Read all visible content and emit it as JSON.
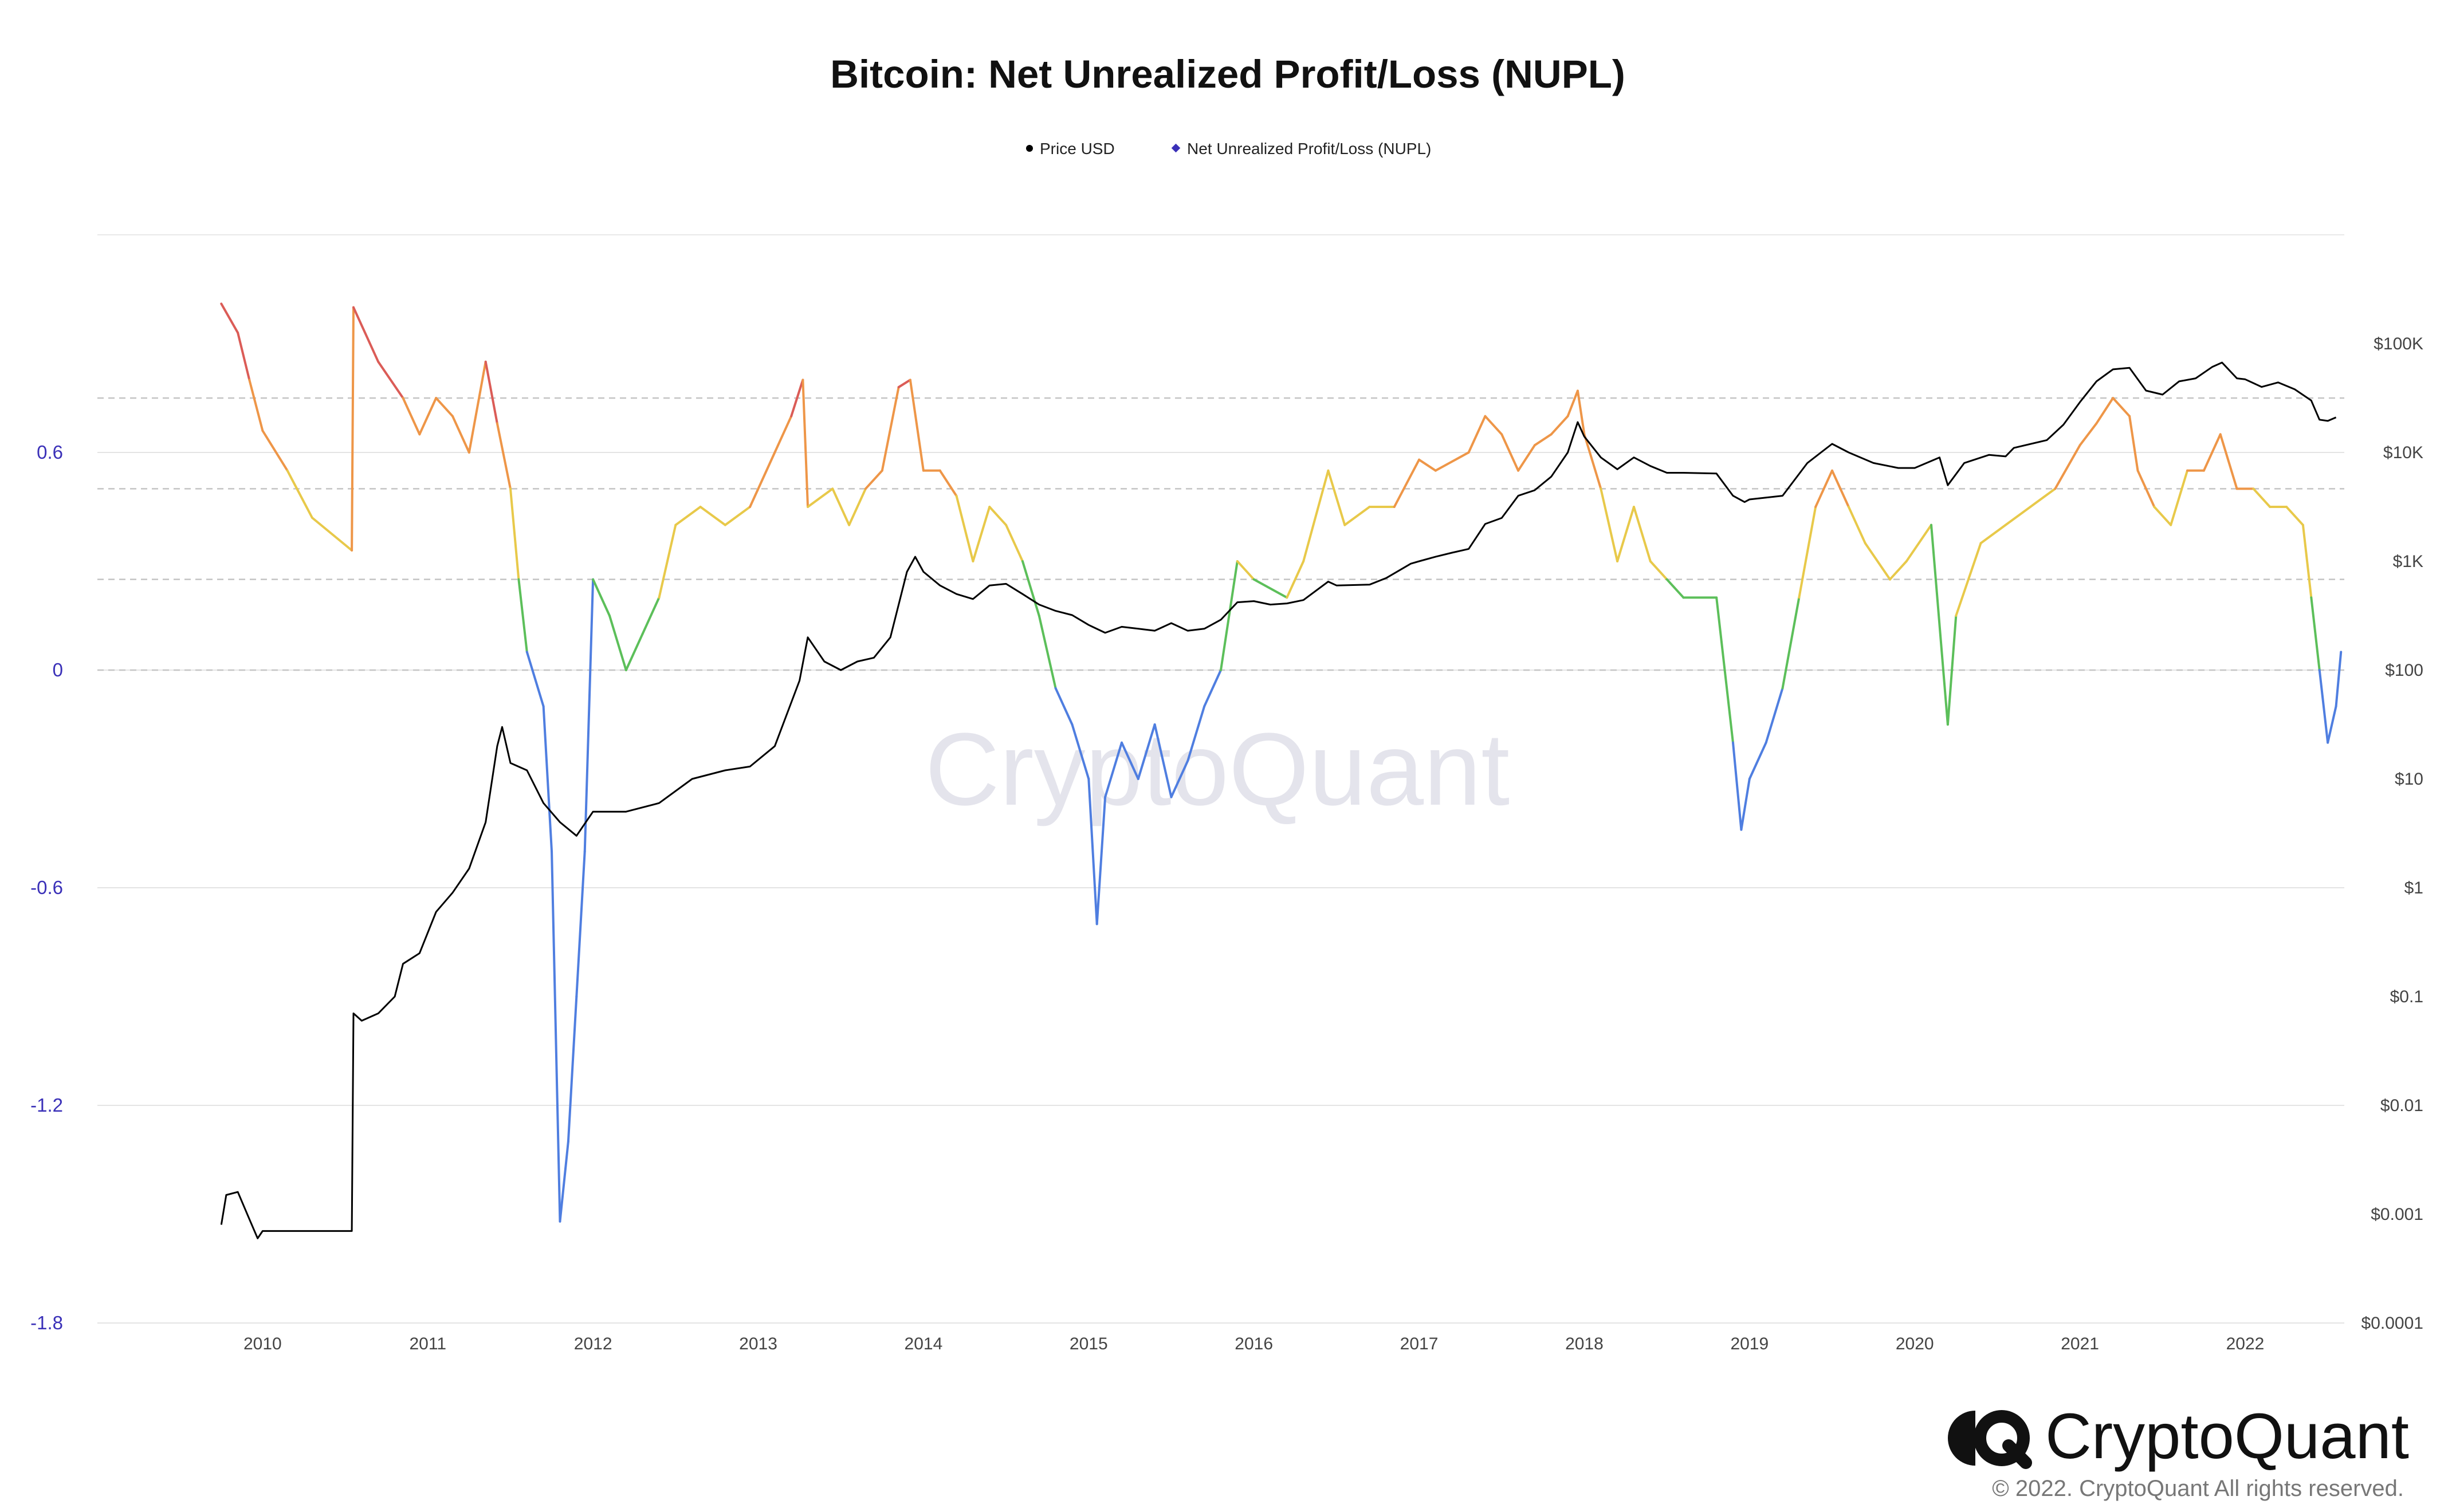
{
  "chart_data": {
    "type": "line",
    "title": "Bitcoin: Net Unrealized Profit/Loss (NUPL)",
    "legend": [
      {
        "name": "Price USD",
        "marker": "circle",
        "color": "#000000"
      },
      {
        "name": "Net Unrealized Profit/Loss (NUPL)",
        "marker": "diamond",
        "color": "#3a30b8"
      }
    ],
    "legend_position": "top-center",
    "grid": true,
    "watermark": "CryptoQuant",
    "x_ticks": [
      "2010",
      "2011",
      "2012",
      "2013",
      "2014",
      "2015",
      "2016",
      "2017",
      "2018",
      "2019",
      "2020",
      "2021",
      "2022"
    ],
    "xlim": [
      2009.0,
      2022.6
    ],
    "y_left": {
      "ticks": [
        "0.6",
        "0",
        "-0.6",
        "-1.2",
        "-1.8"
      ],
      "tick_values": [
        0.6,
        0,
        -0.6,
        -1.2,
        -1.8
      ],
      "ylim": [
        -1.8,
        1.2
      ],
      "reference_lines": [
        0.75,
        0.5,
        0.25,
        0
      ]
    },
    "y_right": {
      "ticks": [
        "$100K",
        "$10K",
        "$1K",
        "$100",
        "$10",
        "$1",
        "$0.1",
        "$0.01",
        "$0.001",
        "$0.0001"
      ],
      "scale": "log",
      "ylim": [
        0.0001,
        1000000
      ]
    },
    "nupl_zone_colors": {
      "capitulation": "#4f7ee0",
      "hope_fear": "#5cbf5a",
      "optimism_anxiety": "#e8c94a",
      "belief_denial": "#ee9648",
      "euphoria_greed": "#db5c57"
    },
    "series": [
      {
        "name": "Price USD",
        "color": "#000000",
        "points": [
          [
            2009.75,
            0.0008
          ],
          [
            2009.78,
            0.0015
          ],
          [
            2009.85,
            0.0016
          ],
          [
            2009.92,
            0.0009
          ],
          [
            2009.97,
            0.0006
          ],
          [
            2010.0,
            0.0007
          ],
          [
            2010.3,
            0.0007
          ],
          [
            2010.54,
            0.0007
          ],
          [
            2010.55,
            0.07
          ],
          [
            2010.6,
            0.06
          ],
          [
            2010.7,
            0.07
          ],
          [
            2010.8,
            0.1
          ],
          [
            2010.85,
            0.2
          ],
          [
            2010.95,
            0.25
          ],
          [
            2011.05,
            0.6
          ],
          [
            2011.15,
            0.9
          ],
          [
            2011.25,
            1.5
          ],
          [
            2011.35,
            4
          ],
          [
            2011.42,
            20
          ],
          [
            2011.45,
            30
          ],
          [
            2011.5,
            14
          ],
          [
            2011.6,
            12
          ],
          [
            2011.7,
            6
          ],
          [
            2011.8,
            4
          ],
          [
            2011.9,
            3
          ],
          [
            2012.0,
            5
          ],
          [
            2012.2,
            5
          ],
          [
            2012.4,
            6
          ],
          [
            2012.6,
            10
          ],
          [
            2012.8,
            12
          ],
          [
            2012.95,
            13
          ],
          [
            2013.1,
            20
          ],
          [
            2013.25,
            80
          ],
          [
            2013.3,
            200
          ],
          [
            2013.4,
            120
          ],
          [
            2013.5,
            100
          ],
          [
            2013.6,
            120
          ],
          [
            2013.7,
            130
          ],
          [
            2013.8,
            200
          ],
          [
            2013.9,
            800
          ],
          [
            2013.95,
            1100
          ],
          [
            2014.0,
            800
          ],
          [
            2014.1,
            600
          ],
          [
            2014.2,
            500
          ],
          [
            2014.3,
            450
          ],
          [
            2014.4,
            600
          ],
          [
            2014.5,
            620
          ],
          [
            2014.6,
            500
          ],
          [
            2014.7,
            400
          ],
          [
            2014.8,
            350
          ],
          [
            2014.9,
            320
          ],
          [
            2015.0,
            260
          ],
          [
            2015.1,
            220
          ],
          [
            2015.2,
            250
          ],
          [
            2015.3,
            240
          ],
          [
            2015.4,
            230
          ],
          [
            2015.5,
            270
          ],
          [
            2015.6,
            230
          ],
          [
            2015.7,
            240
          ],
          [
            2015.8,
            290
          ],
          [
            2015.9,
            420
          ],
          [
            2016.0,
            430
          ],
          [
            2016.1,
            400
          ],
          [
            2016.2,
            410
          ],
          [
            2016.3,
            440
          ],
          [
            2016.45,
            650
          ],
          [
            2016.5,
            600
          ],
          [
            2016.7,
            610
          ],
          [
            2016.8,
            700
          ],
          [
            2016.95,
            950
          ],
          [
            2017.0,
            1000
          ],
          [
            2017.1,
            1100
          ],
          [
            2017.2,
            1200
          ],
          [
            2017.3,
            1300
          ],
          [
            2017.4,
            2200
          ],
          [
            2017.5,
            2500
          ],
          [
            2017.6,
            4000
          ],
          [
            2017.7,
            4500
          ],
          [
            2017.8,
            6000
          ],
          [
            2017.9,
            10000
          ],
          [
            2017.96,
            19000
          ],
          [
            2018.0,
            14000
          ],
          [
            2018.1,
            9000
          ],
          [
            2018.2,
            7000
          ],
          [
            2018.3,
            9000
          ],
          [
            2018.4,
            7500
          ],
          [
            2018.5,
            6500
          ],
          [
            2018.6,
            6500
          ],
          [
            2018.8,
            6400
          ],
          [
            2018.9,
            4000
          ],
          [
            2018.97,
            3500
          ],
          [
            2019.0,
            3700
          ],
          [
            2019.2,
            4000
          ],
          [
            2019.35,
            8000
          ],
          [
            2019.5,
            12000
          ],
          [
            2019.6,
            10000
          ],
          [
            2019.75,
            8000
          ],
          [
            2019.9,
            7200
          ],
          [
            2020.0,
            7200
          ],
          [
            2020.15,
            9000
          ],
          [
            2020.2,
            5000
          ],
          [
            2020.3,
            8000
          ],
          [
            2020.45,
            9500
          ],
          [
            2020.55,
            9200
          ],
          [
            2020.6,
            11000
          ],
          [
            2020.8,
            13000
          ],
          [
            2020.9,
            18000
          ],
          [
            2021.0,
            29000
          ],
          [
            2021.1,
            45000
          ],
          [
            2021.2,
            58000
          ],
          [
            2021.3,
            60000
          ],
          [
            2021.4,
            37000
          ],
          [
            2021.5,
            34000
          ],
          [
            2021.6,
            45000
          ],
          [
            2021.7,
            48000
          ],
          [
            2021.8,
            61000
          ],
          [
            2021.86,
            67000
          ],
          [
            2021.95,
            48000
          ],
          [
            2022.0,
            47000
          ],
          [
            2022.1,
            40000
          ],
          [
            2022.2,
            44000
          ],
          [
            2022.3,
            38000
          ],
          [
            2022.4,
            30000
          ],
          [
            2022.45,
            20000
          ],
          [
            2022.5,
            19500
          ],
          [
            2022.55,
            21000
          ]
        ]
      },
      {
        "name": "Net Unrealized Profit/Loss (NUPL)",
        "color": "#3a30b8",
        "points": [
          [
            2009.75,
            1.01
          ],
          [
            2009.85,
            0.93
          ],
          [
            2009.92,
            0.8
          ],
          [
            2010.0,
            0.66
          ],
          [
            2010.15,
            0.55
          ],
          [
            2010.3,
            0.42
          ],
          [
            2010.54,
            0.33
          ],
          [
            2010.55,
            1.0
          ],
          [
            2010.7,
            0.85
          ],
          [
            2010.85,
            0.75
          ],
          [
            2010.95,
            0.65
          ],
          [
            2011.05,
            0.75
          ],
          [
            2011.15,
            0.7
          ],
          [
            2011.25,
            0.6
          ],
          [
            2011.35,
            0.85
          ],
          [
            2011.42,
            0.68
          ],
          [
            2011.5,
            0.5
          ],
          [
            2011.55,
            0.25
          ],
          [
            2011.6,
            0.05
          ],
          [
            2011.7,
            -0.1
          ],
          [
            2011.75,
            -0.5
          ],
          [
            2011.8,
            -1.52
          ],
          [
            2011.85,
            -1.3
          ],
          [
            2011.9,
            -0.9
          ],
          [
            2011.95,
            -0.5
          ],
          [
            2012.0,
            0.25
          ],
          [
            2012.1,
            0.15
          ],
          [
            2012.2,
            0.0
          ],
          [
            2012.3,
            0.1
          ],
          [
            2012.4,
            0.2
          ],
          [
            2012.5,
            0.4
          ],
          [
            2012.65,
            0.45
          ],
          [
            2012.8,
            0.4
          ],
          [
            2012.95,
            0.45
          ],
          [
            2013.1,
            0.6
          ],
          [
            2013.2,
            0.7
          ],
          [
            2013.27,
            0.8
          ],
          [
            2013.3,
            0.45
          ],
          [
            2013.45,
            0.5
          ],
          [
            2013.55,
            0.4
          ],
          [
            2013.65,
            0.5
          ],
          [
            2013.75,
            0.55
          ],
          [
            2013.85,
            0.78
          ],
          [
            2013.92,
            0.8
          ],
          [
            2014.0,
            0.55
          ],
          [
            2014.1,
            0.55
          ],
          [
            2014.2,
            0.48
          ],
          [
            2014.3,
            0.3
          ],
          [
            2014.4,
            0.45
          ],
          [
            2014.5,
            0.4
          ],
          [
            2014.6,
            0.3
          ],
          [
            2014.7,
            0.15
          ],
          [
            2014.8,
            -0.05
          ],
          [
            2014.9,
            -0.15
          ],
          [
            2015.0,
            -0.3
          ],
          [
            2015.05,
            -0.7
          ],
          [
            2015.1,
            -0.35
          ],
          [
            2015.2,
            -0.2
          ],
          [
            2015.3,
            -0.3
          ],
          [
            2015.4,
            -0.15
          ],
          [
            2015.5,
            -0.35
          ],
          [
            2015.6,
            -0.25
          ],
          [
            2015.7,
            -0.1
          ],
          [
            2015.8,
            0.0
          ],
          [
            2015.9,
            0.3
          ],
          [
            2016.0,
            0.25
          ],
          [
            2016.2,
            0.2
          ],
          [
            2016.3,
            0.3
          ],
          [
            2016.45,
            0.55
          ],
          [
            2016.55,
            0.4
          ],
          [
            2016.7,
            0.45
          ],
          [
            2016.85,
            0.45
          ],
          [
            2017.0,
            0.58
          ],
          [
            2017.1,
            0.55
          ],
          [
            2017.3,
            0.6
          ],
          [
            2017.4,
            0.7
          ],
          [
            2017.5,
            0.65
          ],
          [
            2017.6,
            0.55
          ],
          [
            2017.7,
            0.62
          ],
          [
            2017.8,
            0.65
          ],
          [
            2017.9,
            0.7
          ],
          [
            2017.96,
            0.77
          ],
          [
            2018.0,
            0.65
          ],
          [
            2018.1,
            0.5
          ],
          [
            2018.2,
            0.3
          ],
          [
            2018.3,
            0.45
          ],
          [
            2018.4,
            0.3
          ],
          [
            2018.5,
            0.25
          ],
          [
            2018.6,
            0.2
          ],
          [
            2018.8,
            0.2
          ],
          [
            2018.9,
            -0.2
          ],
          [
            2018.95,
            -0.44
          ],
          [
            2019.0,
            -0.3
          ],
          [
            2019.1,
            -0.2
          ],
          [
            2019.2,
            -0.05
          ],
          [
            2019.3,
            0.2
          ],
          [
            2019.4,
            0.45
          ],
          [
            2019.5,
            0.55
          ],
          [
            2019.6,
            0.45
          ],
          [
            2019.7,
            0.35
          ],
          [
            2019.85,
            0.25
          ],
          [
            2019.95,
            0.3
          ],
          [
            2020.1,
            0.4
          ],
          [
            2020.2,
            -0.15
          ],
          [
            2020.25,
            0.15
          ],
          [
            2020.4,
            0.35
          ],
          [
            2020.55,
            0.4
          ],
          [
            2020.7,
            0.45
          ],
          [
            2020.85,
            0.5
          ],
          [
            2021.0,
            0.62
          ],
          [
            2021.1,
            0.68
          ],
          [
            2021.2,
            0.75
          ],
          [
            2021.3,
            0.7
          ],
          [
            2021.35,
            0.55
          ],
          [
            2021.45,
            0.45
          ],
          [
            2021.55,
            0.4
          ],
          [
            2021.65,
            0.55
          ],
          [
            2021.75,
            0.55
          ],
          [
            2021.85,
            0.65
          ],
          [
            2021.95,
            0.5
          ],
          [
            2022.05,
            0.5
          ],
          [
            2022.15,
            0.45
          ],
          [
            2022.25,
            0.45
          ],
          [
            2022.35,
            0.4
          ],
          [
            2022.4,
            0.2
          ],
          [
            2022.45,
            0.0
          ],
          [
            2022.5,
            -0.2
          ],
          [
            2022.55,
            -0.1
          ],
          [
            2022.58,
            0.05
          ]
        ]
      }
    ]
  },
  "brand": {
    "name": "CryptoQuant",
    "copyright": "© 2022. CryptoQuant All rights reserved."
  }
}
